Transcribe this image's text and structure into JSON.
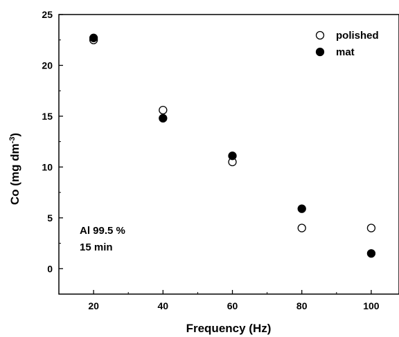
{
  "chart_data": {
    "type": "scatter",
    "xlabel": "Frequency (Hz)",
    "ylabel": {
      "main": "Co (mg dm",
      "sup": "-3",
      "close": ")"
    },
    "xlim": [
      10,
      108
    ],
    "ylim": [
      -2.5,
      25
    ],
    "xticks": [
      20,
      40,
      60,
      80,
      100
    ],
    "yticks": [
      0,
      5,
      10,
      15,
      20,
      25
    ],
    "legend_position": "top-right",
    "annotation": [
      "Al 99.5 %",
      "15 min"
    ],
    "series": [
      {
        "name": "polished",
        "marker": "open-circle",
        "x": [
          20,
          40,
          60,
          80,
          100
        ],
        "y": [
          22.5,
          15.6,
          10.5,
          4.0,
          4.0
        ]
      },
      {
        "name": "mat",
        "marker": "filled-circle",
        "x": [
          20,
          40,
          60,
          80,
          100
        ],
        "y": [
          22.7,
          14.8,
          11.1,
          5.9,
          1.5
        ]
      }
    ]
  }
}
